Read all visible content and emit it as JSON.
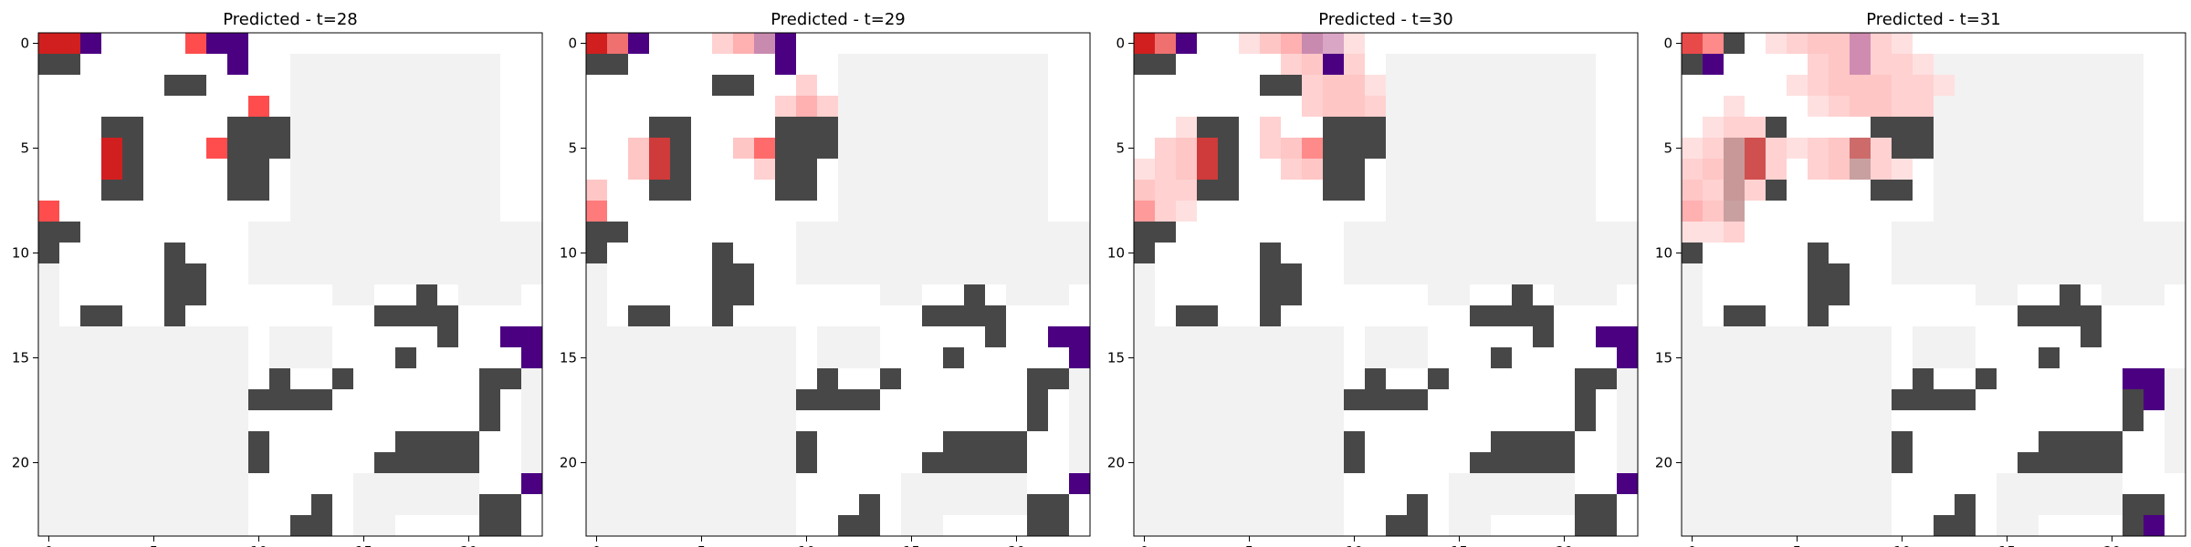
{
  "chart_data": [
    {
      "type": "heatmap",
      "title": "Predicted - t=28",
      "xticks": [
        0,
        5,
        10,
        15,
        20
      ],
      "yticks": [
        0,
        5,
        10,
        15,
        20
      ],
      "xlim": [
        -0.5,
        23.5
      ],
      "ylim": [
        23.5,
        -0.5
      ],
      "grid": false,
      "legend": "none",
      "cells": [
        {
          "x": 0,
          "y": 0,
          "color": "#d11f1f"
        },
        {
          "x": 1,
          "y": 0,
          "color": "#d11f1f"
        },
        {
          "x": 2,
          "y": 0,
          "color": "#4b0082"
        },
        {
          "x": 7,
          "y": 0,
          "color": "#ff4d4d"
        },
        {
          "x": 8,
          "y": 0,
          "color": "#4b0082"
        },
        {
          "x": 9,
          "y": 0,
          "color": "#4b0082"
        },
        {
          "x": 9,
          "y": 1,
          "color": "#4b0082"
        },
        {
          "x": 10,
          "y": 3,
          "color": "#ff4d4d"
        },
        {
          "x": 3,
          "y": 5,
          "color": "#d11f1f"
        },
        {
          "x": 3,
          "y": 6,
          "color": "#d11f1f"
        },
        {
          "x": 8,
          "y": 5,
          "color": "#ff4d4d"
        },
        {
          "x": 0,
          "y": 8,
          "color": "#ff4d4d"
        },
        {
          "x": 23,
          "y": 14,
          "color": "#4b0082"
        },
        {
          "x": 22,
          "y": 14,
          "color": "#4b0082"
        },
        {
          "x": 23,
          "y": 15,
          "color": "#4b0082"
        },
        {
          "x": 23,
          "y": 21,
          "color": "#4b0082"
        }
      ]
    },
    {
      "type": "heatmap",
      "title": "Predicted - t=29",
      "xticks": [
        0,
        5,
        10,
        15,
        20
      ],
      "yticks": [
        0,
        5,
        10,
        15,
        20
      ],
      "xlim": [
        -0.5,
        23.5
      ],
      "ylim": [
        23.5,
        -0.5
      ],
      "grid": false,
      "legend": "none",
      "cells": [
        {
          "x": 0,
          "y": 0,
          "color": "#d11f1f"
        },
        {
          "x": 1,
          "y": 0,
          "color": "#f07070"
        },
        {
          "x": 2,
          "y": 0,
          "color": "#4b0082"
        },
        {
          "x": 6,
          "y": 0,
          "color": "#ffd1d1"
        },
        {
          "x": 7,
          "y": 0,
          "color": "#ffb0b0"
        },
        {
          "x": 8,
          "y": 0,
          "color": "#c98ab0"
        },
        {
          "x": 9,
          "y": 0,
          "color": "#4b0082"
        },
        {
          "x": 9,
          "y": 1,
          "color": "#4b0082"
        },
        {
          "x": 10,
          "y": 2,
          "color": "#ffd1d1"
        },
        {
          "x": 9,
          "y": 3,
          "color": "#ffd1d1"
        },
        {
          "x": 10,
          "y": 3,
          "color": "#ffb0b0"
        },
        {
          "x": 11,
          "y": 3,
          "color": "#ffd1d1"
        },
        {
          "x": 2,
          "y": 5,
          "color": "#ffc6c6"
        },
        {
          "x": 3,
          "y": 5,
          "color": "#cf3a3a"
        },
        {
          "x": 2,
          "y": 6,
          "color": "#ffc6c6"
        },
        {
          "x": 3,
          "y": 6,
          "color": "#cf3a3a"
        },
        {
          "x": 7,
          "y": 5,
          "color": "#ffc6c6"
        },
        {
          "x": 8,
          "y": 5,
          "color": "#ff6b6b"
        },
        {
          "x": 8,
          "y": 6,
          "color": "#ffd1d1"
        },
        {
          "x": 0,
          "y": 7,
          "color": "#ffc6c6"
        },
        {
          "x": 0,
          "y": 8,
          "color": "#ff7a7a"
        },
        {
          "x": 22,
          "y": 14,
          "color": "#4b0082"
        },
        {
          "x": 23,
          "y": 14,
          "color": "#4b0082"
        },
        {
          "x": 23,
          "y": 15,
          "color": "#4b0082"
        },
        {
          "x": 23,
          "y": 21,
          "color": "#4b0082"
        }
      ]
    },
    {
      "type": "heatmap",
      "title": "Predicted - t=30",
      "xticks": [
        0,
        5,
        10,
        15,
        20
      ],
      "yticks": [
        0,
        5,
        10,
        15,
        20
      ],
      "xlim": [
        -0.5,
        23.5
      ],
      "ylim": [
        23.5,
        -0.5
      ],
      "grid": false,
      "legend": "none",
      "cells": [
        {
          "x": 0,
          "y": 0,
          "color": "#d11f1f"
        },
        {
          "x": 1,
          "y": 0,
          "color": "#f07070"
        },
        {
          "x": 2,
          "y": 0,
          "color": "#4b0082"
        },
        {
          "x": 5,
          "y": 0,
          "color": "#ffe0e0"
        },
        {
          "x": 6,
          "y": 0,
          "color": "#ffc6c6"
        },
        {
          "x": 7,
          "y": 0,
          "color": "#ffb0b0"
        },
        {
          "x": 8,
          "y": 0,
          "color": "#c98ab0"
        },
        {
          "x": 9,
          "y": 0,
          "color": "#d9a6c6"
        },
        {
          "x": 10,
          "y": 0,
          "color": "#ffe0e0"
        },
        {
          "x": 7,
          "y": 1,
          "color": "#ffd1d1"
        },
        {
          "x": 8,
          "y": 1,
          "color": "#ffc6c6"
        },
        {
          "x": 9,
          "y": 1,
          "color": "#4b0082"
        },
        {
          "x": 10,
          "y": 1,
          "color": "#ffd1d1"
        },
        {
          "x": 8,
          "y": 2,
          "color": "#ffd1d1"
        },
        {
          "x": 9,
          "y": 2,
          "color": "#ffc6c6"
        },
        {
          "x": 10,
          "y": 2,
          "color": "#ffc6c6"
        },
        {
          "x": 11,
          "y": 2,
          "color": "#ffe0e0"
        },
        {
          "x": 8,
          "y": 3,
          "color": "#ffd1d1"
        },
        {
          "x": 9,
          "y": 3,
          "color": "#ffc6c6"
        },
        {
          "x": 10,
          "y": 3,
          "color": "#ffc6c6"
        },
        {
          "x": 11,
          "y": 3,
          "color": "#ffd1d1"
        },
        {
          "x": 2,
          "y": 4,
          "color": "#ffe0e0"
        },
        {
          "x": 1,
          "y": 5,
          "color": "#ffd1d1"
        },
        {
          "x": 2,
          "y": 5,
          "color": "#ffc6c6"
        },
        {
          "x": 3,
          "y": 5,
          "color": "#cf3a3a"
        },
        {
          "x": 1,
          "y": 6,
          "color": "#ffd1d1"
        },
        {
          "x": 2,
          "y": 6,
          "color": "#ffc6c6"
        },
        {
          "x": 3,
          "y": 6,
          "color": "#cf3a3a"
        },
        {
          "x": 6,
          "y": 4,
          "color": "#ffd1d1"
        },
        {
          "x": 6,
          "y": 5,
          "color": "#ffd1d1"
        },
        {
          "x": 7,
          "y": 5,
          "color": "#ffc6c6"
        },
        {
          "x": 8,
          "y": 5,
          "color": "#ff8a8a"
        },
        {
          "x": 7,
          "y": 6,
          "color": "#ffd1d1"
        },
        {
          "x": 8,
          "y": 6,
          "color": "#ffc6c6"
        },
        {
          "x": 0,
          "y": 6,
          "color": "#ffe0e0"
        },
        {
          "x": 0,
          "y": 7,
          "color": "#ffc6c6"
        },
        {
          "x": 1,
          "y": 7,
          "color": "#ffd1d1"
        },
        {
          "x": 2,
          "y": 7,
          "color": "#ffd1d1"
        },
        {
          "x": 0,
          "y": 8,
          "color": "#ff9a9a"
        },
        {
          "x": 1,
          "y": 8,
          "color": "#ffd1d1"
        },
        {
          "x": 2,
          "y": 8,
          "color": "#ffe0e0"
        },
        {
          "x": 22,
          "y": 14,
          "color": "#4b0082"
        },
        {
          "x": 23,
          "y": 14,
          "color": "#4b0082"
        },
        {
          "x": 23,
          "y": 15,
          "color": "#4b0082"
        },
        {
          "x": 23,
          "y": 21,
          "color": "#4b0082"
        }
      ]
    },
    {
      "type": "heatmap",
      "title": "Predicted - t=31",
      "xticks": [
        0,
        5,
        10,
        15,
        20
      ],
      "yticks": [
        0,
        5,
        10,
        15,
        20
      ],
      "xlim": [
        -0.5,
        23.5
      ],
      "ylim": [
        23.5,
        -0.5
      ],
      "grid": false,
      "legend": "none",
      "cells": [
        {
          "x": 0,
          "y": 0,
          "color": "#e84a4a"
        },
        {
          "x": 1,
          "y": 0,
          "color": "#ff8a8a"
        },
        {
          "x": 1,
          "y": 1,
          "color": "#4b0082"
        },
        {
          "x": 4,
          "y": 0,
          "color": "#ffe0e0"
        },
        {
          "x": 5,
          "y": 0,
          "color": "#ffd1d1"
        },
        {
          "x": 6,
          "y": 0,
          "color": "#ffc6c6"
        },
        {
          "x": 7,
          "y": 0,
          "color": "#ffc6c6"
        },
        {
          "x": 8,
          "y": 0,
          "color": "#d08cb0"
        },
        {
          "x": 9,
          "y": 0,
          "color": "#ffd1d1"
        },
        {
          "x": 10,
          "y": 0,
          "color": "#ffe0e0"
        },
        {
          "x": 6,
          "y": 1,
          "color": "#ffd1d1"
        },
        {
          "x": 7,
          "y": 1,
          "color": "#ffc6c6"
        },
        {
          "x": 8,
          "y": 1,
          "color": "#d08cb0"
        },
        {
          "x": 9,
          "y": 1,
          "color": "#ffd1d1"
        },
        {
          "x": 10,
          "y": 1,
          "color": "#ffd1d1"
        },
        {
          "x": 11,
          "y": 1,
          "color": "#ffe0e0"
        },
        {
          "x": 5,
          "y": 2,
          "color": "#ffe0e0"
        },
        {
          "x": 6,
          "y": 2,
          "color": "#ffd1d1"
        },
        {
          "x": 7,
          "y": 2,
          "color": "#ffc6c6"
        },
        {
          "x": 8,
          "y": 2,
          "color": "#ffc6c6"
        },
        {
          "x": 9,
          "y": 2,
          "color": "#ffc6c6"
        },
        {
          "x": 10,
          "y": 2,
          "color": "#ffd1d1"
        },
        {
          "x": 11,
          "y": 2,
          "color": "#ffd1d1"
        },
        {
          "x": 12,
          "y": 2,
          "color": "#ffe0e0"
        },
        {
          "x": 2,
          "y": 3,
          "color": "#ffe0e0"
        },
        {
          "x": 6,
          "y": 3,
          "color": "#ffe0e0"
        },
        {
          "x": 7,
          "y": 3,
          "color": "#ffd1d1"
        },
        {
          "x": 8,
          "y": 3,
          "color": "#ffc6c6"
        },
        {
          "x": 9,
          "y": 3,
          "color": "#ffc6c6"
        },
        {
          "x": 10,
          "y": 3,
          "color": "#ffd1d1"
        },
        {
          "x": 11,
          "y": 3,
          "color": "#ffd1d1"
        },
        {
          "x": 1,
          "y": 4,
          "color": "#ffe0e0"
        },
        {
          "x": 2,
          "y": 4,
          "color": "#ffd1d1"
        },
        {
          "x": 3,
          "y": 4,
          "color": "#ffd1d1"
        },
        {
          "x": 0,
          "y": 5,
          "color": "#ffe0e0"
        },
        {
          "x": 1,
          "y": 5,
          "color": "#ffd1d1"
        },
        {
          "x": 2,
          "y": 5,
          "color": "#c89898"
        },
        {
          "x": 3,
          "y": 5,
          "color": "#d05050"
        },
        {
          "x": 4,
          "y": 5,
          "color": "#ffd1d1"
        },
        {
          "x": 5,
          "y": 5,
          "color": "#ffe0e0"
        },
        {
          "x": 6,
          "y": 5,
          "color": "#ffd1d1"
        },
        {
          "x": 7,
          "y": 5,
          "color": "#ffc6c6"
        },
        {
          "x": 8,
          "y": 5,
          "color": "#cd6b6b"
        },
        {
          "x": 9,
          "y": 5,
          "color": "#ffd1d1"
        },
        {
          "x": 0,
          "y": 6,
          "color": "#ffd1d1"
        },
        {
          "x": 1,
          "y": 6,
          "color": "#ffc6c6"
        },
        {
          "x": 2,
          "y": 6,
          "color": "#c89898"
        },
        {
          "x": 3,
          "y": 6,
          "color": "#d05050"
        },
        {
          "x": 4,
          "y": 6,
          "color": "#ffd1d1"
        },
        {
          "x": 6,
          "y": 6,
          "color": "#ffd1d1"
        },
        {
          "x": 7,
          "y": 6,
          "color": "#ffc6c6"
        },
        {
          "x": 8,
          "y": 6,
          "color": "#c9a0a0"
        },
        {
          "x": 9,
          "y": 6,
          "color": "#ffd1d1"
        },
        {
          "x": 10,
          "y": 6,
          "color": "#ffe0e0"
        },
        {
          "x": 0,
          "y": 7,
          "color": "#ffc6c6"
        },
        {
          "x": 1,
          "y": 7,
          "color": "#ffd1d1"
        },
        {
          "x": 2,
          "y": 7,
          "color": "#c89898"
        },
        {
          "x": 3,
          "y": 7,
          "color": "#ffd1d1"
        },
        {
          "x": 0,
          "y": 8,
          "color": "#ffb0b0"
        },
        {
          "x": 1,
          "y": 8,
          "color": "#ffc6c6"
        },
        {
          "x": 2,
          "y": 8,
          "color": "#c9a0a0"
        },
        {
          "x": 0,
          "y": 9,
          "color": "#ffe0e0"
        },
        {
          "x": 1,
          "y": 9,
          "color": "#ffe0e0"
        },
        {
          "x": 2,
          "y": 9,
          "color": "#ffd1d1"
        },
        {
          "x": 21,
          "y": 16,
          "color": "#4b0082"
        },
        {
          "x": 22,
          "y": 16,
          "color": "#4b0082"
        },
        {
          "x": 22,
          "y": 17,
          "color": "#4b0082"
        },
        {
          "x": 22,
          "y": 23,
          "color": "#4b0082"
        }
      ]
    }
  ]
}
